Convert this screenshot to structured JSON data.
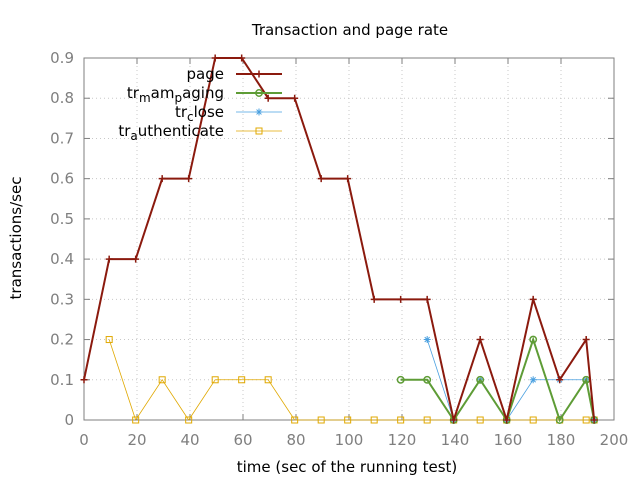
{
  "chart_data": {
    "type": "line",
    "title": "Transaction and page rate",
    "xlabel": "time (sec of the running test)",
    "ylabel": "transactions/sec",
    "xlim": [
      0,
      200
    ],
    "ylim": [
      0,
      0.9
    ],
    "xticks": [
      "0",
      "20",
      "40",
      "60",
      "80",
      "100",
      "120",
      "140",
      "160",
      "180",
      "200"
    ],
    "yticks": [
      "0",
      "0.1",
      "0.2",
      "0.3",
      "0.4",
      "0.5",
      "0.6",
      "0.7",
      "0.8",
      "0.9"
    ],
    "grid": true,
    "legend_position": "top-left",
    "series": [
      {
        "name": "page",
        "name_parts": [
          [
            "page",
            "n"
          ]
        ],
        "color": "#8b1a0e",
        "marker": "plus",
        "x": [
          0,
          9.5,
          19.5,
          29.5,
          39.5,
          49.5,
          59.5,
          69.5,
          79.5,
          89.5,
          99.5,
          109.5,
          119.5,
          129.5,
          139.5,
          149.5,
          159.5,
          169.5,
          179.5,
          189.5,
          192.5
        ],
        "y": [
          0.1,
          0.4,
          0.4,
          0.6,
          0.6,
          0.9,
          0.9,
          0.8,
          0.8,
          0.6,
          0.6,
          0.3,
          0.3,
          0.3,
          0.0,
          0.2,
          0.0,
          0.3,
          0.1,
          0.2,
          0.0
        ]
      },
      {
        "name": "trmampaging",
        "name_parts": [
          [
            "tr",
            "n"
          ],
          [
            "m",
            "sub"
          ],
          [
            "am",
            "n"
          ],
          [
            "p",
            "sub"
          ],
          [
            "aging",
            "n"
          ]
        ],
        "color": "#5e9c36",
        "marker": "circle",
        "x": [
          119.5,
          129.5,
          139.5,
          149.5,
          159.5,
          169.5,
          179.5,
          189.5,
          192.5
        ],
        "y": [
          0.1,
          0.1,
          0.0,
          0.1,
          0.0,
          0.2,
          0.0,
          0.1,
          0.0
        ]
      },
      {
        "name": "trclose",
        "name_parts": [
          [
            "tr",
            "n"
          ],
          [
            "c",
            "sub"
          ],
          [
            "lose",
            "n"
          ]
        ],
        "color": "#4aa0e0",
        "marker": "star",
        "x": [
          129.5,
          139.5,
          149.5,
          159.5,
          169.5,
          179.5,
          189.5,
          192.5
        ],
        "y": [
          0.2,
          0.0,
          0.1,
          0.0,
          0.1,
          0.1,
          0.1,
          0.0
        ]
      },
      {
        "name": "trauthenticate",
        "name_parts": [
          [
            "tr",
            "n"
          ],
          [
            "a",
            "sub"
          ],
          [
            "uthenticate",
            "n"
          ]
        ],
        "color": "#e0a800",
        "marker": "square",
        "x": [
          9.5,
          19.5,
          29.5,
          39.5,
          49.5,
          59.5,
          69.5,
          79.5,
          89.5,
          99.5,
          109.5,
          119.5,
          129.5,
          139.5,
          149.5,
          159.5,
          169.5,
          179.5,
          189.5,
          192.5
        ],
        "y": [
          0.2,
          0.0,
          0.1,
          0.0,
          0.1,
          0.1,
          0.1,
          0.0,
          0.0,
          0.0,
          0.0,
          0.0,
          0.0,
          0.0,
          0.0,
          0.0,
          0.0,
          0.0,
          0.0,
          0.0
        ]
      }
    ]
  }
}
